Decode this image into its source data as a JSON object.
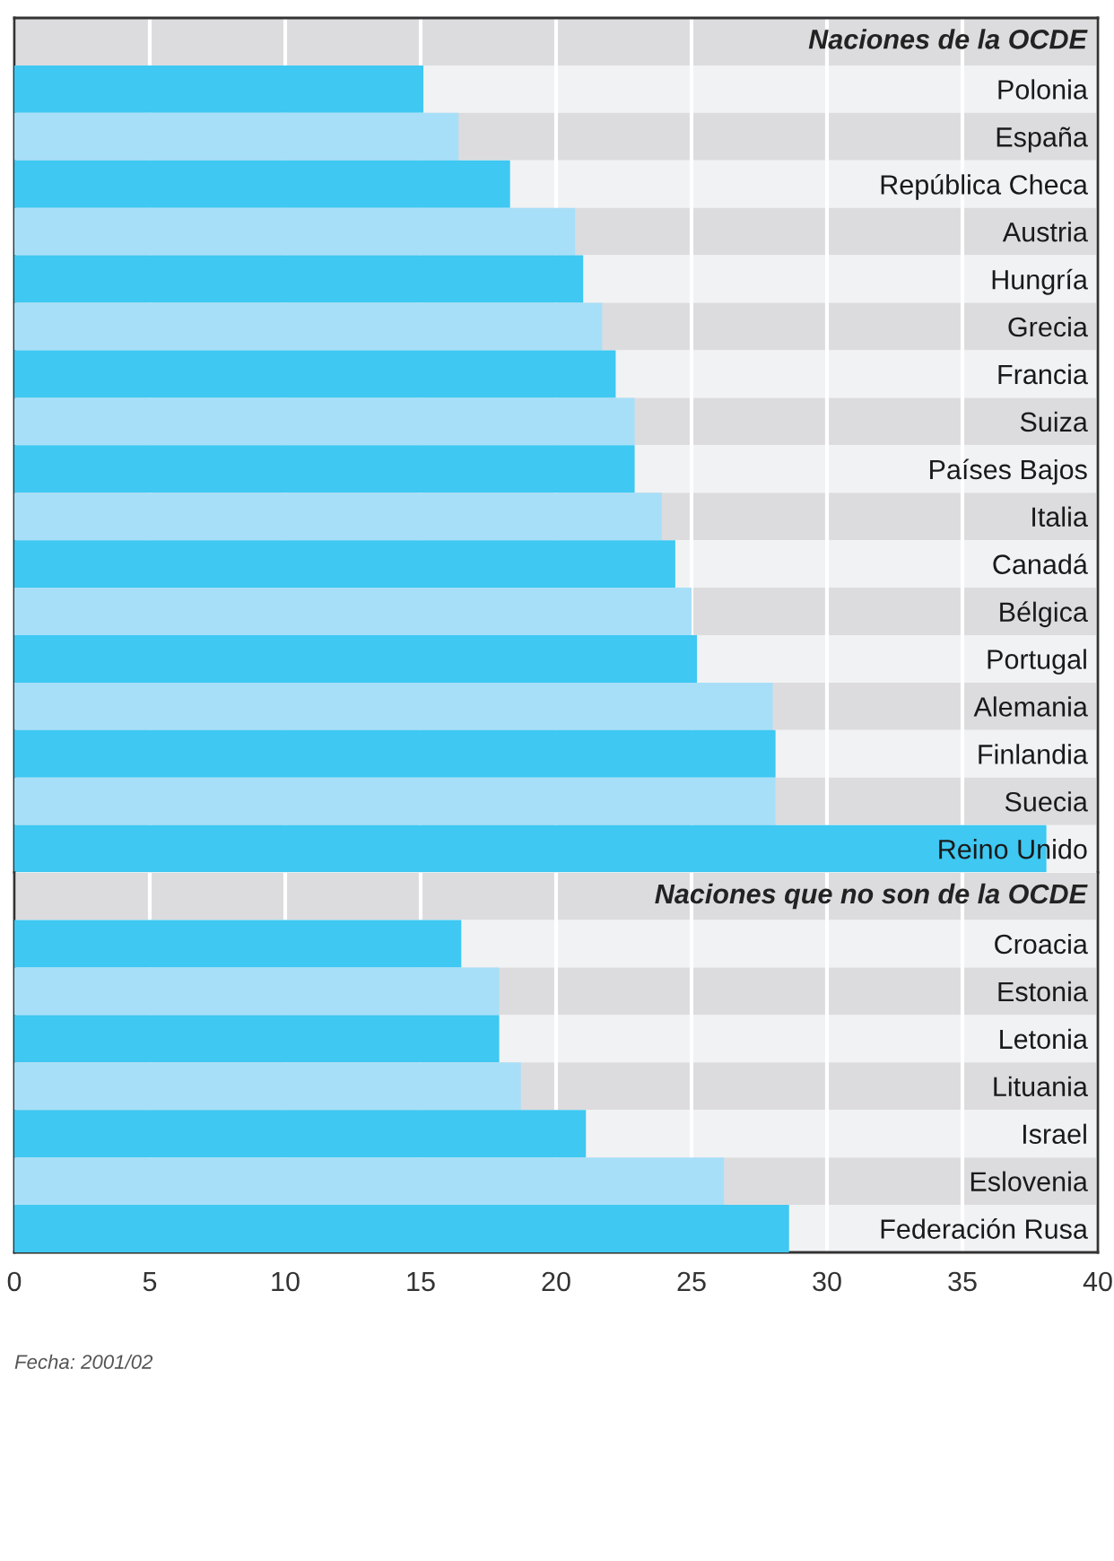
{
  "chart_data": [
    {
      "type": "bar",
      "orientation": "horizontal",
      "title": "Naciones de la OCDE",
      "categories": [
        "Polonia",
        "España",
        "República Checa",
        "Austria",
        "Hungría",
        "Grecia",
        "Francia",
        "Suiza",
        "Países Bajos",
        "Italia",
        "Canadá",
        "Bélgica",
        "Portugal",
        "Alemania",
        "Finlandia",
        "Suecia",
        "Reino Unido"
      ],
      "values": [
        15.1,
        16.4,
        18.3,
        20.7,
        21.0,
        21.7,
        22.2,
        22.9,
        22.9,
        23.9,
        24.4,
        25.0,
        25.2,
        28.0,
        28.1,
        28.1,
        38.1
      ],
      "colors": [
        "#3ec8f2",
        "#a8dff8",
        "#3ec8f2",
        "#a8dff8",
        "#3ec8f2",
        "#a8dff8",
        "#3ec8f2",
        "#a8dff8",
        "#3ec8f2",
        "#a8dff8",
        "#3ec8f2",
        "#a8dff8",
        "#3ec8f2",
        "#a8dff8",
        "#3ec8f2",
        "#a8dff8",
        "#3ec8f2"
      ],
      "xlim": [
        0,
        40
      ],
      "xticks": [
        0,
        5,
        10,
        15,
        20,
        25,
        30,
        35,
        40
      ],
      "grid": "x",
      "tick_labels": "y"
    },
    {
      "type": "bar",
      "orientation": "horizontal",
      "title": "Naciones que no son de la OCDE",
      "categories": [
        "Croacia",
        "Estonia",
        "Letonia",
        "Lituania",
        "Israel",
        "Eslovenia",
        "Federación Rusa"
      ],
      "values": [
        16.5,
        17.9,
        17.9,
        18.7,
        21.1,
        26.2,
        28.6
      ],
      "colors": [
        "#3ec8f2",
        "#a8dff8",
        "#3ec8f2",
        "#a8dff8",
        "#3ec8f2",
        "#a8dff8",
        "#3ec8f2"
      ],
      "xlim": [
        0,
        40
      ],
      "xticks": [
        0,
        5,
        10,
        15,
        20,
        25,
        30,
        35,
        40
      ],
      "grid": "x",
      "annotations": [
        "Fecha: 2001/02"
      ]
    }
  ]
}
